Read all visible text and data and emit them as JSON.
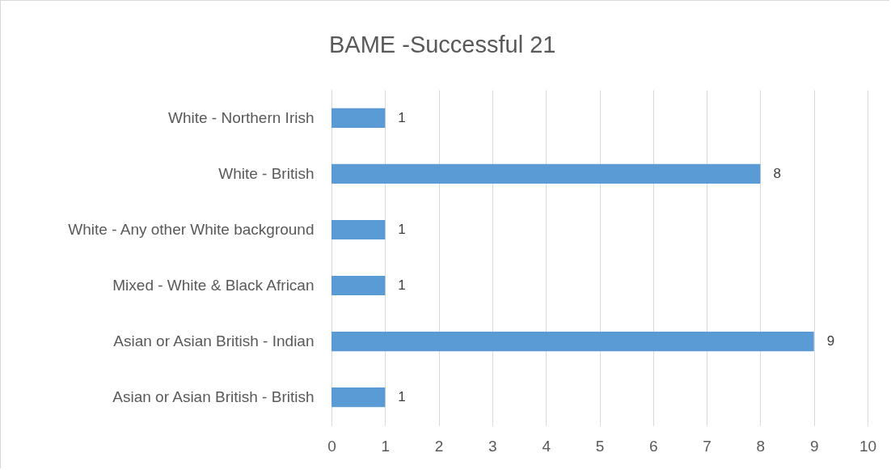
{
  "chart_data": {
    "type": "bar",
    "orientation": "horizontal",
    "title": "BAME -Successful 21",
    "categories": [
      "White - Northern Irish",
      "White - British",
      "White - Any other White background",
      "Mixed - White & Black African",
      "Asian or Asian British - Indian",
      "Asian or Asian British - British"
    ],
    "values": [
      1,
      8,
      1,
      1,
      9,
      1
    ],
    "color": "#5b9bd5",
    "xlim": [
      0,
      10
    ],
    "xticks": [
      0,
      1,
      2,
      3,
      4,
      5,
      6,
      7,
      8,
      9,
      10
    ],
    "grid": "x",
    "data_labels": true
  }
}
